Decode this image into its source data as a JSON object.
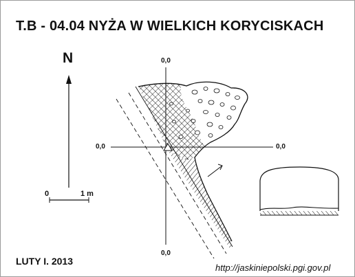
{
  "title": "T.B - 04.04  NYŻA W WIELKICH KORYCISKACH",
  "north_label": "N",
  "scale": {
    "start_label": "0",
    "end_label": "1 m"
  },
  "coordinates": {
    "top": "0,0",
    "left": "0,0",
    "right": "0,0",
    "bottom": "0,0"
  },
  "date": "LUTY I. 2013",
  "url": "http://jaskiniepolski.pgi.gov.pl",
  "colors": {
    "ink": "#111111",
    "frame": "#9a9a9a",
    "background": "#ffffff"
  }
}
